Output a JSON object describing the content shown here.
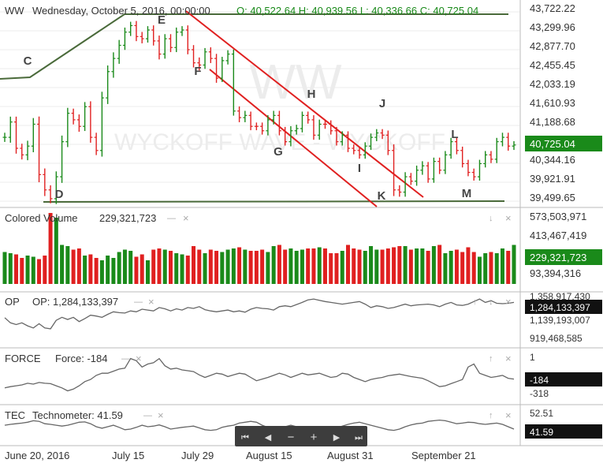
{
  "header": {
    "symbol": "WW",
    "date": "Wednesday, October 5, 2016, 00:00:00",
    "ohlc": "O: 40,522.64  H: 40,939.56  L: 40,336.66  C: 40,725.04"
  },
  "watermark": {
    "big": "WW",
    "sub": "WYCKOFF WAVE - WYCKOFF"
  },
  "price_axis": {
    "ticks": [
      "43,722.22",
      "43,299.96",
      "42,877.70",
      "42,455.45",
      "42,033.19",
      "41,610.93",
      "41,188.68",
      "40,344.16",
      "39,921.91",
      "39,499.65"
    ],
    "last": "40,725.04"
  },
  "wave_labels": [
    "C",
    "E",
    "F",
    "H",
    "J",
    "G",
    "I",
    "L",
    "K",
    "M",
    "D"
  ],
  "volume_panel": {
    "title": "Colored Volume",
    "value": "229,321,723",
    "ticks": [
      "573,503,971",
      "413,467,419",
      "93,394,316"
    ],
    "last": "229,321,723"
  },
  "op_panel": {
    "name": "OP",
    "title": "OP: 1,284,133,397",
    "ticks": [
      "1,358,917,430",
      "1,139,193,007",
      "919,468,585"
    ],
    "last": "1,284,133,397"
  },
  "force_panel": {
    "name": "FORCE",
    "title": "Force: -184",
    "ticks": [
      "1",
      "-318"
    ],
    "last": "-184"
  },
  "tec_panel": {
    "name": "TEC",
    "title": "Technometer: 41.59",
    "ticks": [
      "52.51"
    ],
    "last": "41.59"
  },
  "x_axis": {
    "labels": [
      "June 20, 2016",
      "July 15",
      "July 29",
      "August 15",
      "August 31",
      "September 21"
    ]
  },
  "panel_controls": {
    "minus": "—",
    "close": "×",
    "up": "↑",
    "down": "↓"
  },
  "nav": {
    "first": "⏮",
    "prev": "◀",
    "zoom_out": "−",
    "zoom_in": "+",
    "next": "▶",
    "last": "⏭"
  },
  "colors": {
    "up": "#1a8a1a",
    "down": "#e02020",
    "channel": "#e02020",
    "trend": "#4a6a3a",
    "grid": "#d8d8d8"
  },
  "chart_data": [
    {
      "type": "ohlc",
      "title": "WW",
      "ylim": [
        39300,
        43800
      ],
      "close": [
        40900,
        41250,
        40650,
        40500,
        40700,
        41200,
        40050,
        39700,
        39500,
        40000,
        40800,
        41450,
        41300,
        41150,
        41600,
        40900,
        40600,
        41800,
        42400,
        42700,
        43000,
        43300,
        43450,
        43200,
        43150,
        43350,
        43100,
        42800,
        43150,
        42950,
        43300,
        43350,
        42900,
        42600,
        42550,
        42850,
        42700,
        42250,
        42650,
        42800,
        41500,
        41350,
        41400,
        41150,
        41150,
        41050,
        41300,
        41400,
        41050,
        40800,
        41050,
        41100,
        41400,
        41300,
        40950,
        41200,
        41200,
        41050,
        40800,
        40950,
        40650,
        40600,
        40500,
        40700,
        40900,
        41000,
        40950,
        40600,
        39700,
        39650,
        40000,
        39900,
        40150,
        40250,
        39950,
        40350,
        40150,
        40500,
        40800,
        40600,
        40300,
        40100,
        40000,
        40300,
        40500,
        40400,
        40800,
        40900,
        40700,
        40725
      ],
      "up": [
        1,
        1,
        0,
        0,
        1,
        1,
        0,
        0,
        0,
        1,
        1,
        1,
        0,
        0,
        1,
        0,
        0,
        1,
        1,
        1,
        1,
        1,
        1,
        0,
        0,
        1,
        0,
        0,
        1,
        0,
        1,
        1,
        0,
        0,
        0,
        1,
        0,
        0,
        1,
        1,
        1,
        0,
        1,
        0,
        0,
        0,
        1,
        1,
        0,
        0,
        1,
        1,
        1,
        0,
        0,
        1,
        0,
        0,
        0,
        1,
        0,
        0,
        0,
        1,
        1,
        1,
        0,
        0,
        0,
        0,
        1,
        0,
        1,
        1,
        0,
        1,
        0,
        1,
        1,
        0,
        0,
        0,
        0,
        1,
        1,
        0,
        1,
        1,
        0,
        1
      ],
      "range": [
        300,
        350,
        350,
        300,
        350,
        400,
        500,
        400,
        300,
        350,
        400,
        350,
        300,
        350,
        300,
        350,
        300,
        400,
        400,
        400,
        350,
        300,
        250,
        300,
        300,
        250,
        300,
        350,
        300,
        300,
        300,
        250,
        300,
        300,
        350,
        250,
        300,
        300,
        250,
        250,
        300,
        300,
        300,
        250,
        250,
        250,
        300,
        300,
        300,
        250,
        300,
        250,
        250,
        250,
        300,
        300,
        300,
        250,
        250,
        250,
        250,
        250,
        250,
        250,
        250,
        250,
        250,
        300,
        400,
        300,
        300,
        250,
        300,
        300,
        250,
        250,
        250,
        250,
        250,
        250,
        250,
        250,
        250,
        250,
        250,
        250,
        250,
        300,
        300,
        250
      ]
    },
    {
      "type": "bar",
      "title": "Colored Volume",
      "ylim": [
        0,
        600000000
      ],
      "values": [
        270,
        260,
        250,
        220,
        240,
        230,
        210,
        240,
        600,
        560,
        330,
        320,
        290,
        300,
        240,
        250,
        220,
        200,
        240,
        220,
        270,
        290,
        280,
        230,
        250,
        200,
        290,
        300,
        290,
        280,
        260,
        250,
        240,
        320,
        290,
        260,
        290,
        280,
        270,
        290,
        300,
        310,
        290,
        280,
        280,
        290,
        270,
        320,
        330,
        290,
        300,
        280,
        290,
        300,
        300,
        310,
        300,
        260,
        260,
        280,
        330,
        300,
        290,
        280,
        320,
        290,
        290,
        300,
        310,
        320,
        320,
        290,
        300,
        300,
        280,
        320,
        330,
        260,
        280,
        290,
        270,
        310,
        270,
        230,
        260,
        270,
        260,
        300,
        280,
        330
      ]
    },
    {
      "type": "line",
      "title": "OP: 1,284,133,397",
      "values": [
        0.54,
        0.42,
        0.38,
        0.42,
        0.35,
        0.3,
        0.4,
        0.3,
        0.28,
        0.48,
        0.55,
        0.5,
        0.55,
        0.45,
        0.52,
        0.6,
        0.58,
        0.55,
        0.62,
        0.68,
        0.66,
        0.65,
        0.7,
        0.68,
        0.74,
        0.72,
        0.7,
        0.78,
        0.75,
        0.7,
        0.75,
        0.72,
        0.78,
        0.76,
        0.8,
        0.73,
        0.7,
        0.68,
        0.7,
        0.72,
        0.68,
        0.7,
        0.67,
        0.74,
        0.78,
        0.76,
        0.75,
        0.72,
        0.8,
        0.82,
        0.8,
        0.85,
        0.9,
        0.96,
        0.98,
        0.95,
        0.92,
        0.9,
        0.88,
        0.86,
        0.88,
        0.9,
        0.92,
        0.86,
        0.78,
        0.82,
        0.8,
        0.76,
        0.78,
        0.82,
        0.86,
        0.82,
        0.84,
        0.85,
        0.86,
        0.84,
        0.8,
        0.86,
        0.9,
        0.84,
        0.83,
        0.86,
        0.92,
        0.98,
        0.9,
        0.94,
        0.88,
        0.87,
        0.88,
        0.9
      ]
    },
    {
      "type": "line",
      "title": "Force: -184",
      "values": [
        0.25,
        0.28,
        0.3,
        0.32,
        0.36,
        0.34,
        0.38,
        0.36,
        0.35,
        0.3,
        0.25,
        0.18,
        0.22,
        0.3,
        0.4,
        0.45,
        0.55,
        0.6,
        0.6,
        0.65,
        0.7,
        0.72,
        0.95,
        0.9,
        0.75,
        0.82,
        0.85,
        0.95,
        0.78,
        0.7,
        0.72,
        0.68,
        0.66,
        0.64,
        0.56,
        0.5,
        0.55,
        0.6,
        0.58,
        0.52,
        0.56,
        0.6,
        0.58,
        0.5,
        0.42,
        0.46,
        0.5,
        0.55,
        0.6,
        0.56,
        0.5,
        0.55,
        0.6,
        0.56,
        0.58,
        0.6,
        0.55,
        0.5,
        0.52,
        0.6,
        0.58,
        0.5,
        0.45,
        0.4,
        0.45,
        0.48,
        0.5,
        0.54,
        0.56,
        0.58,
        0.55,
        0.52,
        0.5,
        0.48,
        0.42,
        0.35,
        0.28,
        0.3,
        0.35,
        0.4,
        0.45,
        0.75,
        0.82,
        0.6,
        0.55,
        0.5,
        0.52,
        0.55,
        0.48,
        0.46
      ]
    },
    {
      "type": "line",
      "title": "Technometer: 41.59",
      "ylim": [
        0,
        100
      ],
      "values": [
        0.55,
        0.58,
        0.6,
        0.62,
        0.65,
        0.7,
        0.68,
        0.6,
        0.58,
        0.55,
        0.52,
        0.55,
        0.6,
        0.65,
        0.66,
        0.6,
        0.5,
        0.45,
        0.5,
        0.55,
        0.48,
        0.4,
        0.42,
        0.48,
        0.55,
        0.5,
        0.52,
        0.56,
        0.5,
        0.42,
        0.45,
        0.48,
        0.5,
        0.52,
        0.46,
        0.4,
        0.38,
        0.4,
        0.48,
        0.52,
        0.55,
        0.62,
        0.65,
        0.68,
        0.65,
        0.55,
        0.48,
        0.4,
        0.45,
        0.5,
        0.55,
        0.5,
        0.4,
        0.35,
        0.3,
        0.28,
        0.32,
        0.38,
        0.45,
        0.52,
        0.58,
        0.62,
        0.65,
        0.6,
        0.55,
        0.5,
        0.45,
        0.4,
        0.38,
        0.42,
        0.5,
        0.56,
        0.6,
        0.62,
        0.68,
        0.7,
        0.72,
        0.7,
        0.65,
        0.6,
        0.62,
        0.65,
        0.64,
        0.6,
        0.58,
        0.6,
        0.62,
        0.58,
        0.5,
        0.42
      ]
    }
  ]
}
